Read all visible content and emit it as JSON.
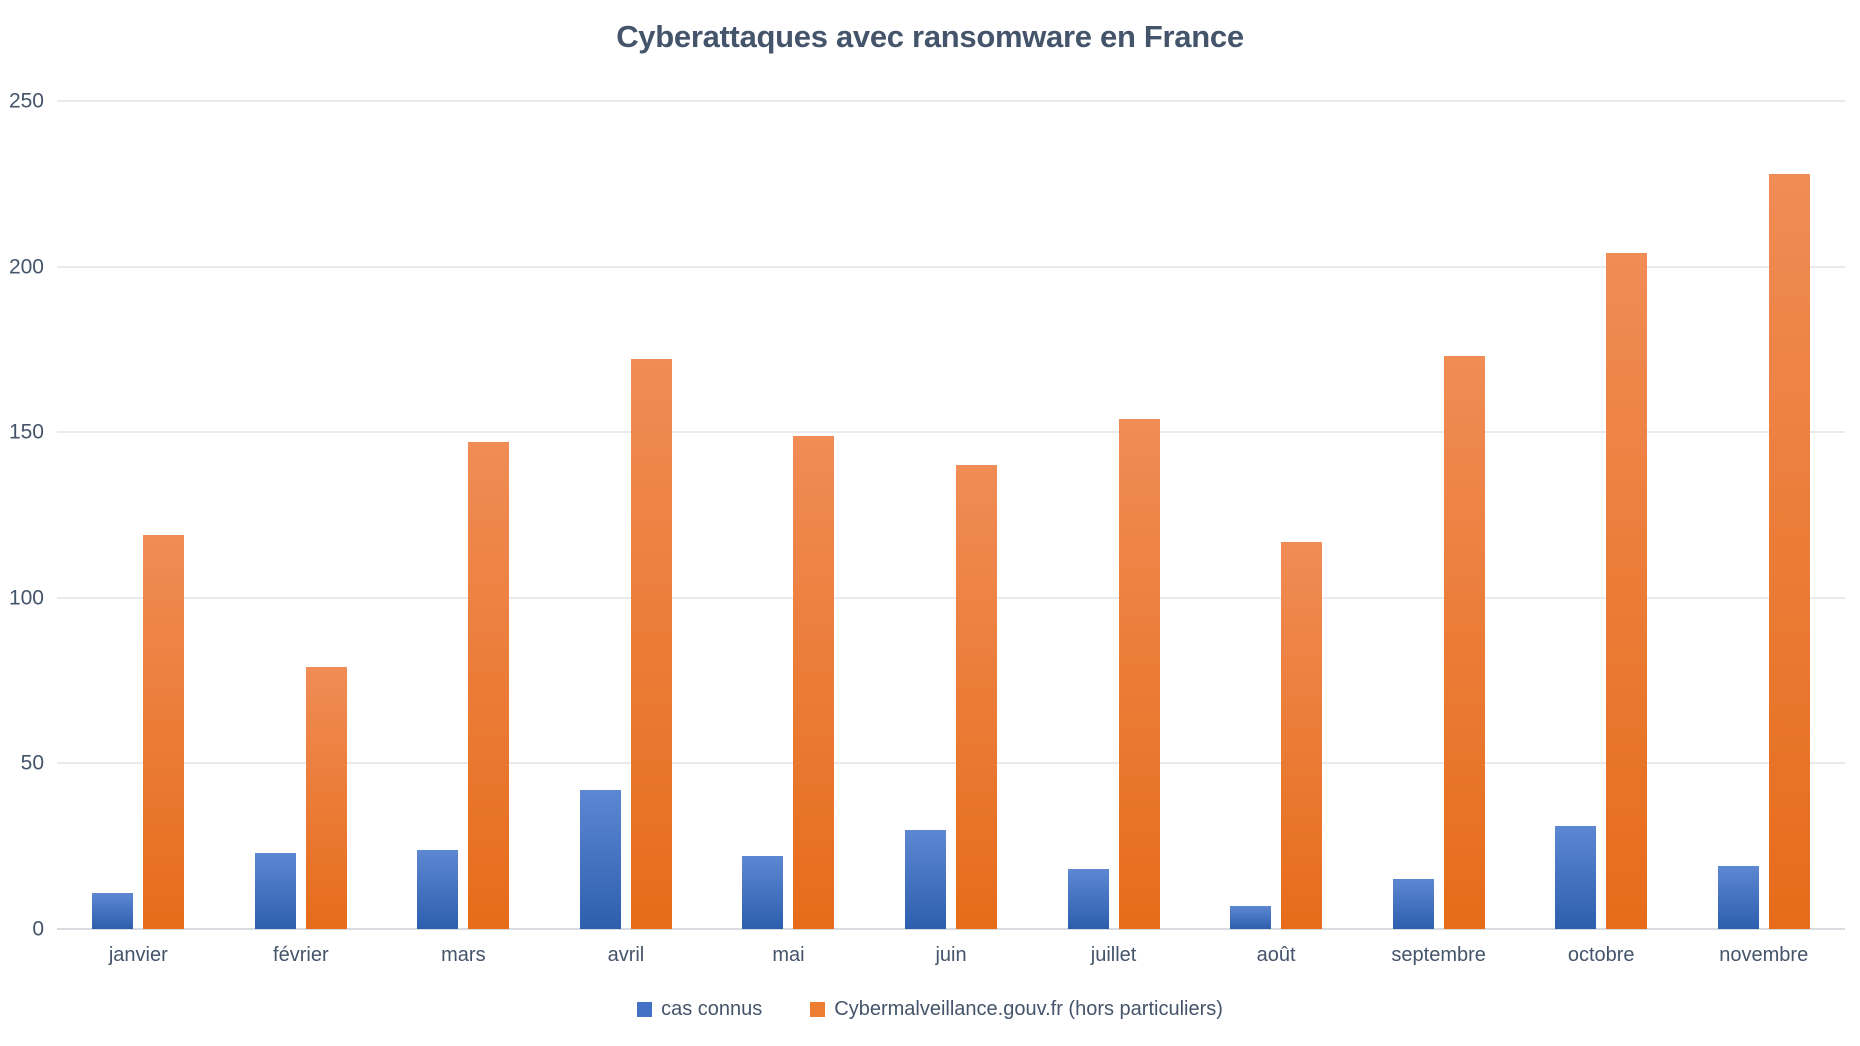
{
  "title": "Cyberattaques avec ransomware en France",
  "colors": {
    "title_text": "#44546A",
    "axis_text": "#44546A",
    "gridline": "#E8EAEE",
    "axis_line": "#D8DBE0",
    "blue_bar_top": "#5D87D2",
    "blue_bar_bottom": "#2D5FAE",
    "orange_bar_top": "#F08C55",
    "orange_bar_bottom": "#E66C1A",
    "legend_blue": "#4472C4",
    "legend_orange": "#ED7D31"
  },
  "chart_data": {
    "type": "bar",
    "title": "Cyberattaques avec ransomware en France",
    "categories": [
      "janvier",
      "février",
      "mars",
      "avril",
      "mai",
      "juin",
      "juillet",
      "août",
      "septembre",
      "octobre",
      "novembre"
    ],
    "series": [
      {
        "name": "cas connus",
        "color": "#4472C4",
        "values": [
          11,
          23,
          24,
          42,
          22,
          30,
          18,
          7,
          15,
          31,
          19
        ]
      },
      {
        "name": "Cybermalveillance.gouv.fr (hors particuliers)",
        "color": "#ED7D31",
        "values": [
          119,
          79,
          147,
          172,
          149,
          140,
          154,
          117,
          173,
          204,
          228
        ]
      }
    ],
    "xlabel": "",
    "ylabel": "",
    "y_ticks": [
      0,
      50,
      100,
      150,
      200,
      250
    ],
    "ylim": [
      0,
      250
    ],
    "grid": true,
    "legend_position": "bottom"
  }
}
